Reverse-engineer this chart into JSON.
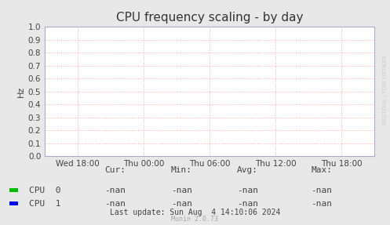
{
  "title": "CPU frequency scaling - by day",
  "ylabel": "Hz",
  "background_color": "#e8e8e8",
  "plot_bg_color": "#ffffff",
  "grid_color": "#ffaaaa",
  "axis_color": "#aaaacc",
  "title_color": "#333333",
  "text_color": "#444444",
  "ylim": [
    0.0,
    1.0
  ],
  "yticks": [
    0.0,
    0.1,
    0.2,
    0.3,
    0.4,
    0.5,
    0.6,
    0.7,
    0.8,
    0.9,
    1.0
  ],
  "xtick_labels": [
    "Wed 18:00",
    "Thu 00:00",
    "Thu 06:00",
    "Thu 12:00",
    "Thu 18:00"
  ],
  "xtick_positions": [
    0.1,
    0.3,
    0.5,
    0.7,
    0.9
  ],
  "legend_entries": [
    {
      "label": "CPU  0",
      "color": "#00bb00"
    },
    {
      "label": "CPU  1",
      "color": "#0000ee"
    }
  ],
  "legend_col_headers": [
    "Cur:",
    "Min:",
    "Avg:",
    "Max:"
  ],
  "legend_values": [
    [
      "-nan",
      "-nan",
      "-nan",
      "-nan"
    ],
    [
      "-nan",
      "-nan",
      "-nan",
      "-nan"
    ]
  ],
  "footer_text": "Last update: Sun Aug  4 14:10:06 2024",
  "munin_text": "Munin 2.0.73",
  "rrdtool_text": "RRDTOOL / TOBI OETIKER",
  "title_fontsize": 11,
  "label_fontsize": 8,
  "tick_fontsize": 7.5,
  "legend_fontsize": 8,
  "footer_fontsize": 7,
  "munin_fontsize": 6
}
